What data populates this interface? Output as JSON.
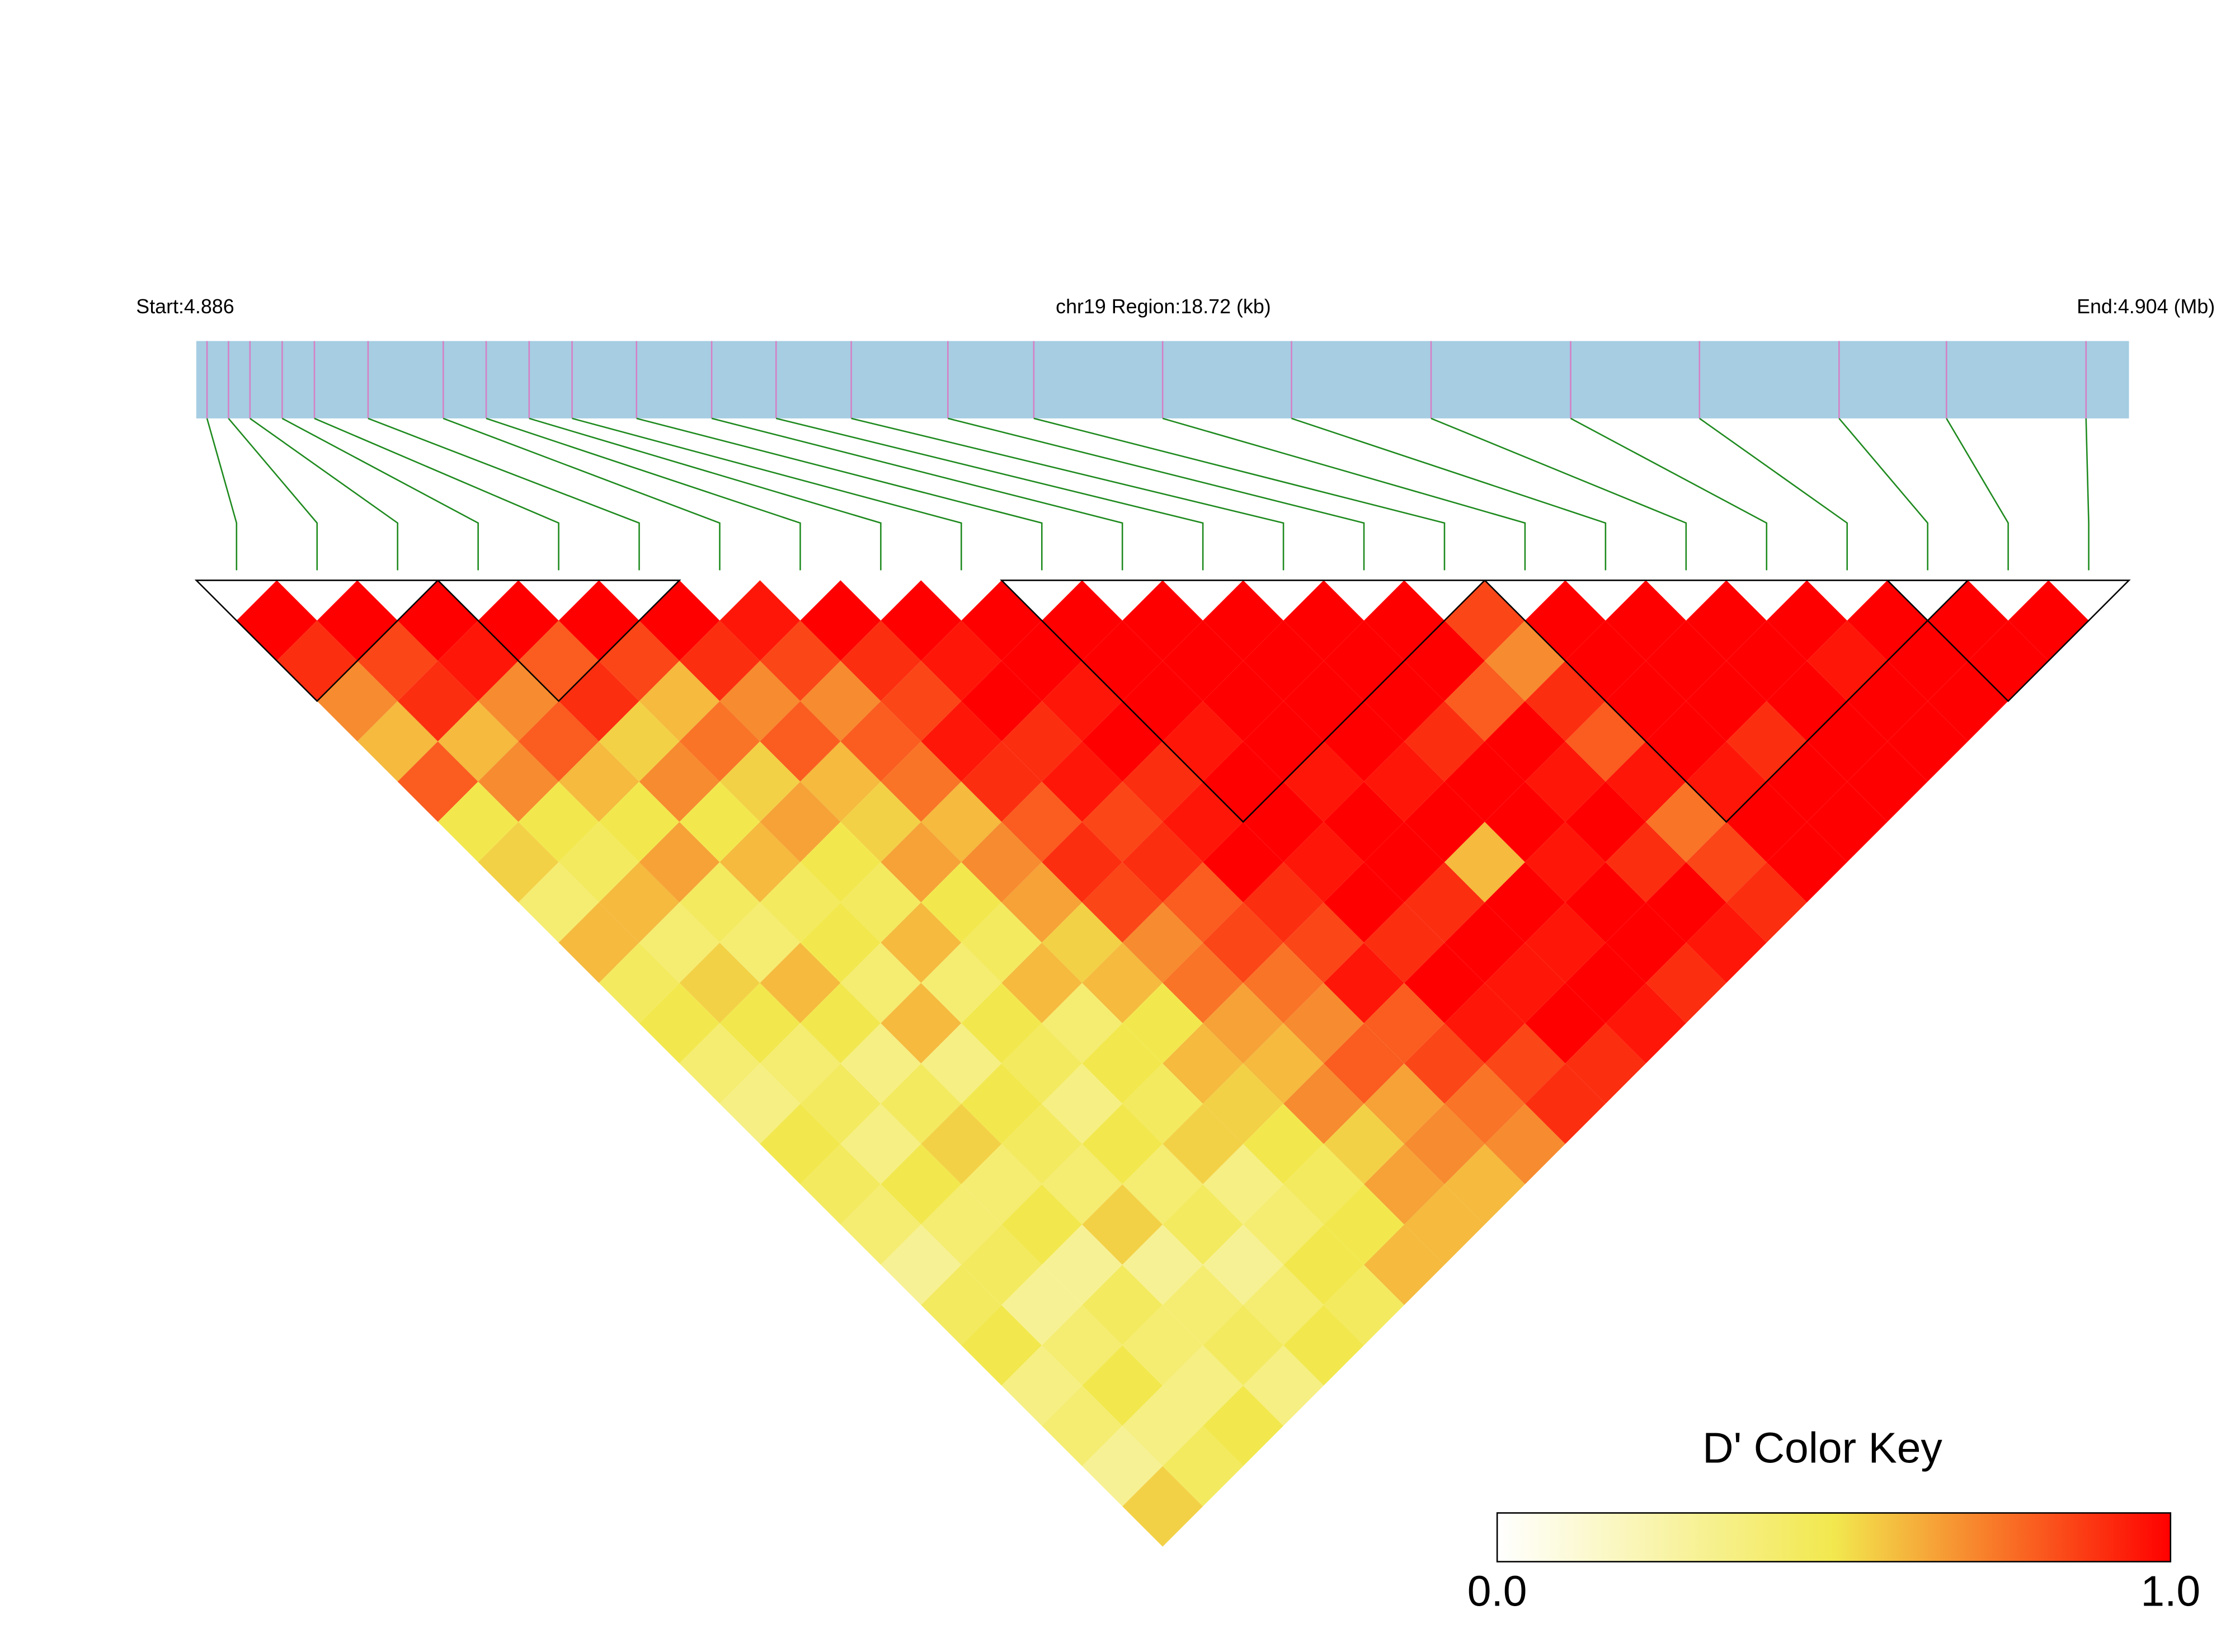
{
  "chart_data": {
    "type": "ld-heatmap",
    "start_label": "Start:4.886",
    "region_label": "chr19 Region:18.72 (kb)",
    "end_label": "End:4.904 (Mb)",
    "xlim": [
      4.886,
      4.904
    ],
    "bar_color": "#a6cde2",
    "snp_tick_color": "#d67fc6",
    "connector_color": "#1e8a1e",
    "snp_positions": [
      4.8861,
      4.8863,
      4.8865,
      4.8868,
      4.8871,
      4.8876,
      4.8883,
      4.8887,
      4.8891,
      4.8895,
      4.8901,
      4.8908,
      4.8914,
      4.8921,
      4.893,
      4.8938,
      4.895,
      4.8962,
      4.8975,
      4.8988,
      4.9,
      4.9013,
      4.9023,
      4.9036
    ],
    "d_prime": [
      [
        1,
        0.9,
        0.7,
        0.6,
        0.8,
        0.5,
        0.55,
        0.4,
        0.6,
        0.45,
        0.5,
        0.4,
        0.35,
        0.5,
        0.45,
        0.4,
        0.3,
        0.45,
        0.5,
        0.35,
        0.4,
        0.3,
        0.55
      ],
      [
        1,
        0.85,
        0.9,
        0.6,
        0.7,
        0.5,
        0.45,
        0.6,
        0.4,
        0.55,
        0.5,
        0.4,
        0.45,
        0.35,
        0.5,
        0.4,
        0.45,
        0.3,
        0.4,
        0.5,
        0.35,
        0.45
      ],
      [
        1,
        0.95,
        0.7,
        0.8,
        0.6,
        0.5,
        0.65,
        0.45,
        0.4,
        0.6,
        0.5,
        0.35,
        0.45,
        0.55,
        0.4,
        0.5,
        0.3,
        0.45,
        0.4,
        0.35,
        0.5
      ],
      [
        1,
        0.8,
        0.9,
        0.55,
        0.7,
        0.5,
        0.6,
        0.45,
        0.5,
        0.4,
        0.6,
        0.35,
        0.5,
        0.45,
        0.4,
        0.55,
        0.3,
        0.4,
        0.45,
        0.35
      ],
      [
        1,
        0.85,
        0.6,
        0.75,
        0.55,
        0.65,
        0.5,
        0.45,
        0.6,
        0.4,
        0.5,
        0.45,
        0.35,
        0.5,
        0.4,
        0.45,
        0.3,
        0.4,
        0.5
      ],
      [
        1,
        0.9,
        0.7,
        0.8,
        0.6,
        0.55,
        0.65,
        0.5,
        0.45,
        0.6,
        0.4,
        0.5,
        0.45,
        0.55,
        0.35,
        0.4,
        0.5,
        0.45
      ],
      [
        0.95,
        0.85,
        0.7,
        0.8,
        0.75,
        0.6,
        0.7,
        0.65,
        0.55,
        0.6,
        0.5,
        0.6,
        0.55,
        0.5,
        0.45,
        0.5,
        0.6
      ],
      [
        1,
        0.9,
        0.85,
        0.95,
        0.9,
        0.8,
        0.9,
        0.85,
        0.7,
        0.75,
        0.65,
        0.6,
        0.7,
        0.55,
        0.65,
        0.6
      ],
      [
        1,
        0.95,
        1,
        0.9,
        0.95,
        0.85,
        0.9,
        0.8,
        0.85,
        0.75,
        0.7,
        0.8,
        0.65,
        0.7,
        0.6
      ],
      [
        1,
        1,
        0.95,
        1,
        0.9,
        0.95,
        1,
        0.9,
        0.85,
        0.95,
        0.8,
        0.85,
        0.75,
        0.7
      ],
      [
        1,
        1,
        1,
        0.95,
        1,
        1,
        0.95,
        1,
        0.9,
        1,
        0.95,
        0.85,
        0.9
      ],
      [
        1,
        1,
        1,
        1,
        0.95,
        1,
        1,
        0.9,
        1,
        0.95,
        1,
        0.9
      ],
      [
        1,
        1,
        1,
        1,
        0.95,
        1,
        0.6,
        1,
        0.95,
        1,
        0.95
      ],
      [
        1,
        1,
        1,
        0.9,
        1,
        1,
        0.95,
        1,
        1,
        0.9
      ],
      [
        1,
        1,
        0.8,
        1,
        0.95,
        1,
        0.9,
        1,
        0.95
      ],
      [
        0.85,
        0.7,
        0.9,
        0.8,
        0.95,
        0.75,
        0.85,
        0.9
      ],
      [
        1,
        1,
        1,
        1,
        0.95,
        1,
        1
      ],
      [
        1,
        1,
        1,
        0.9,
        1,
        1
      ],
      [
        1,
        1,
        1,
        1,
        1
      ],
      [
        1,
        0.95,
        1,
        1
      ],
      [
        1,
        1,
        1
      ],
      [
        1,
        1
      ],
      [
        1
      ]
    ],
    "blocks": [
      [
        0,
        2
      ],
      [
        3,
        5
      ],
      [
        10,
        15
      ],
      [
        16,
        21
      ],
      [
        21,
        23
      ]
    ],
    "colorscale": [
      "#ffffff",
      "#f2e84e",
      "#ff0000"
    ],
    "colorbar": {
      "title": "D' Color Key",
      "ticks": [
        {
          "value": 0,
          "label": "0.0"
        },
        {
          "value": 1,
          "label": "1.0"
        }
      ]
    }
  }
}
